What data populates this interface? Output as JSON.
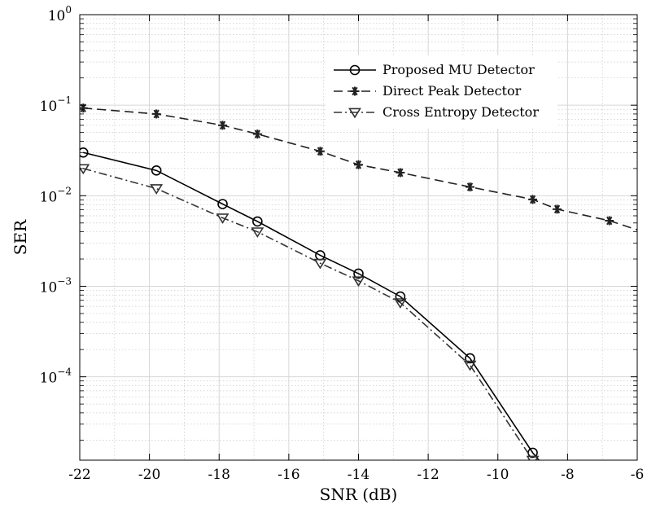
{
  "chart_data": {
    "type": "line",
    "xlabel": "SNR (dB)",
    "ylabel": "SER",
    "xscale": "linear",
    "yscale": "log",
    "xlim": [
      -22,
      -6
    ],
    "ylim": [
      1.2e-05,
      1
    ],
    "grid": true,
    "minor_grid": true,
    "legend_position": "top-right",
    "x_ticks": [
      -22,
      -20,
      -18,
      -16,
      -14,
      -12,
      -10,
      -8,
      -6
    ],
    "x_tick_labels": [
      "-22",
      "-20",
      "-18",
      "-16",
      "-14",
      "-12",
      "-10",
      "-8",
      "-6"
    ],
    "y_ticks": [
      {
        "value": 1,
        "base": "10",
        "exp": "0"
      },
      {
        "value": 0.1,
        "base": "10",
        "exp": "−1"
      },
      {
        "value": 0.01,
        "base": "10",
        "exp": "−2"
      },
      {
        "value": 0.001,
        "base": "10",
        "exp": "−3"
      },
      {
        "value": 0.0001,
        "base": "10",
        "exp": "−4"
      }
    ],
    "series": [
      {
        "name": "Proposed MU Detector",
        "line": "solid",
        "marker": "circle",
        "color": "#000000",
        "x": [
          -21.9,
          -19.8,
          -17.9,
          -16.9,
          -15.1,
          -14.0,
          -12.8,
          -10.8,
          -9.0,
          -8.6
        ],
        "y": [
          0.03,
          0.019,
          0.0081,
          0.0052,
          0.0022,
          0.00138,
          0.00077,
          0.00016,
          1.45e-05,
          9.5e-06
        ],
        "markers": [
          true,
          true,
          true,
          true,
          true,
          true,
          true,
          true,
          true,
          false
        ]
      },
      {
        "name": "Direct Peak Detector",
        "line": "dashed",
        "marker": "asterisk",
        "color": "#222222",
        "x": [
          -21.9,
          -19.8,
          -17.9,
          -16.9,
          -15.1,
          -14.0,
          -12.8,
          -10.8,
          -9.0,
          -8.3,
          -6.8,
          -6.0
        ],
        "y": [
          0.093,
          0.08,
          0.06,
          0.048,
          0.031,
          0.022,
          0.018,
          0.0125,
          0.0091,
          0.0071,
          0.0053,
          0.0042
        ],
        "markers": [
          true,
          true,
          true,
          true,
          true,
          true,
          true,
          true,
          true,
          true,
          true,
          false
        ]
      },
      {
        "name": "Cross Entropy Detector",
        "line": "dashdot",
        "marker": "triangle-down",
        "color": "#333333",
        "x": [
          -21.9,
          -19.8,
          -17.9,
          -16.9,
          -15.1,
          -14.0,
          -12.8,
          -10.8,
          -9.0,
          -8.7
        ],
        "y": [
          0.02,
          0.012,
          0.0057,
          0.004,
          0.0018,
          0.00115,
          0.00066,
          0.000135,
          1.2e-05,
          9.5e-06
        ],
        "markers": [
          true,
          true,
          true,
          true,
          true,
          true,
          true,
          true,
          true,
          false
        ]
      }
    ]
  }
}
